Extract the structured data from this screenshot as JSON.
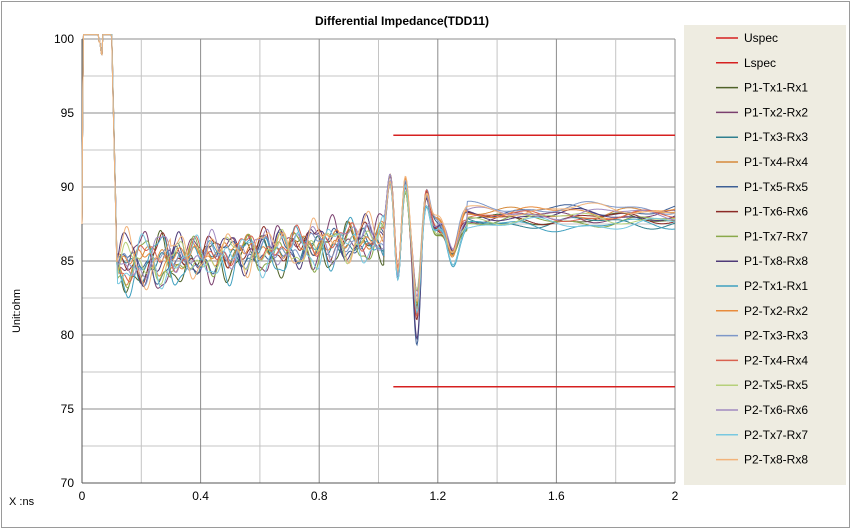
{
  "chart_data": {
    "type": "line",
    "title": "Differential Impedance(TDD11)",
    "xlabel": "X :ns",
    "ylabel": "Unit:ohm",
    "xlim": [
      0,
      2
    ],
    "ylim": [
      70,
      100
    ],
    "x_ticks": [
      "0",
      "0.4",
      "0.8",
      "1.2",
      "1.6",
      "2"
    ],
    "x_tick_values": [
      0,
      0.4,
      0.8,
      1.2,
      1.6,
      2
    ],
    "y_ticks": [
      "100",
      "95",
      "90",
      "85",
      "80",
      "75",
      "70"
    ],
    "y_tick_values": [
      100,
      95,
      90,
      85,
      80,
      75,
      70
    ],
    "grid": true,
    "legend_position": "right",
    "spec_lines": [
      {
        "name": "Uspec",
        "color": "#d62020",
        "x": [
          1.05,
          2.0
        ],
        "y": [
          93.5,
          93.5
        ]
      },
      {
        "name": "Lspec",
        "color": "#d62020",
        "x": [
          1.05,
          2.0
        ],
        "y": [
          76.5,
          76.5
        ]
      }
    ],
    "series": [
      {
        "name": "P1-Tx1-Rx1",
        "color": "#4f6228",
        "y_level": 87.8,
        "dip": 82.8
      },
      {
        "name": "P1-Tx2-Rx2",
        "color": "#7a3f6e",
        "y_level": 88.0,
        "dip": 83.5
      },
      {
        "name": "P1-Tx3-Rx3",
        "color": "#2f7f8f",
        "y_level": 87.6,
        "dip": 82.9
      },
      {
        "name": "P1-Tx4-Rx4",
        "color": "#d68a3a",
        "y_level": 88.2,
        "dip": 83.2
      },
      {
        "name": "P1-Tx5-Rx5",
        "color": "#3d5f95",
        "y_level": 88.4,
        "dip": 80.5
      },
      {
        "name": "P1-Tx6-Rx6",
        "color": "#8b2a26",
        "y_level": 87.9,
        "dip": 82.0
      },
      {
        "name": "P1-Tx7-Rx7",
        "color": "#8aa94a",
        "y_level": 87.7,
        "dip": 83.0
      },
      {
        "name": "P1-Tx8-Rx8",
        "color": "#4e3a78",
        "y_level": 88.1,
        "dip": 80.2
      },
      {
        "name": "P2-Tx1-Rx1",
        "color": "#3fa0bf",
        "y_level": 87.4,
        "dip": 82.5
      },
      {
        "name": "P2-Tx2-Rx2",
        "color": "#e88b3c",
        "y_level": 88.3,
        "dip": 82.7
      },
      {
        "name": "P2-Tx3-Rx3",
        "color": "#7d97c8",
        "y_level": 88.6,
        "dip": 83.4
      },
      {
        "name": "P2-Tx4-Rx4",
        "color": "#d9614f",
        "y_level": 88.0,
        "dip": 82.2
      },
      {
        "name": "P2-Tx5-Rx5",
        "color": "#b6d07a",
        "y_level": 87.9,
        "dip": 83.8
      },
      {
        "name": "P2-Tx6-Rx6",
        "color": "#a08ac0",
        "y_level": 88.2,
        "dip": 83.0
      },
      {
        "name": "P2-Tx7-Rx7",
        "color": "#78c8e0",
        "y_level": 87.5,
        "dip": 82.6
      },
      {
        "name": "P2-Tx8-Rx8",
        "color": "#f2b37a",
        "y_level": 88.5,
        "dip": 83.1
      }
    ]
  }
}
